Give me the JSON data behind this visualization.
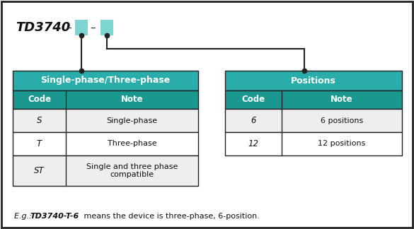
{
  "teal": "#2AACAA",
  "teal_dark": "#1A9890",
  "border": "#222222",
  "bg": "#FFFFFF",
  "light": "#EEEEEE",
  "white": "#FFFFFF",
  "box_color": "#7DD5D0",
  "left_table_title": "Single-phase/Three-phase",
  "right_table_title": "Positions",
  "left_rows": [
    [
      "S",
      "Single-phase"
    ],
    [
      "T",
      "Three-phase"
    ],
    [
      "ST",
      "Single and three phase\ncompatible"
    ]
  ],
  "right_rows": [
    [
      "6",
      "6 positions"
    ],
    [
      "12",
      "12 positions"
    ]
  ]
}
